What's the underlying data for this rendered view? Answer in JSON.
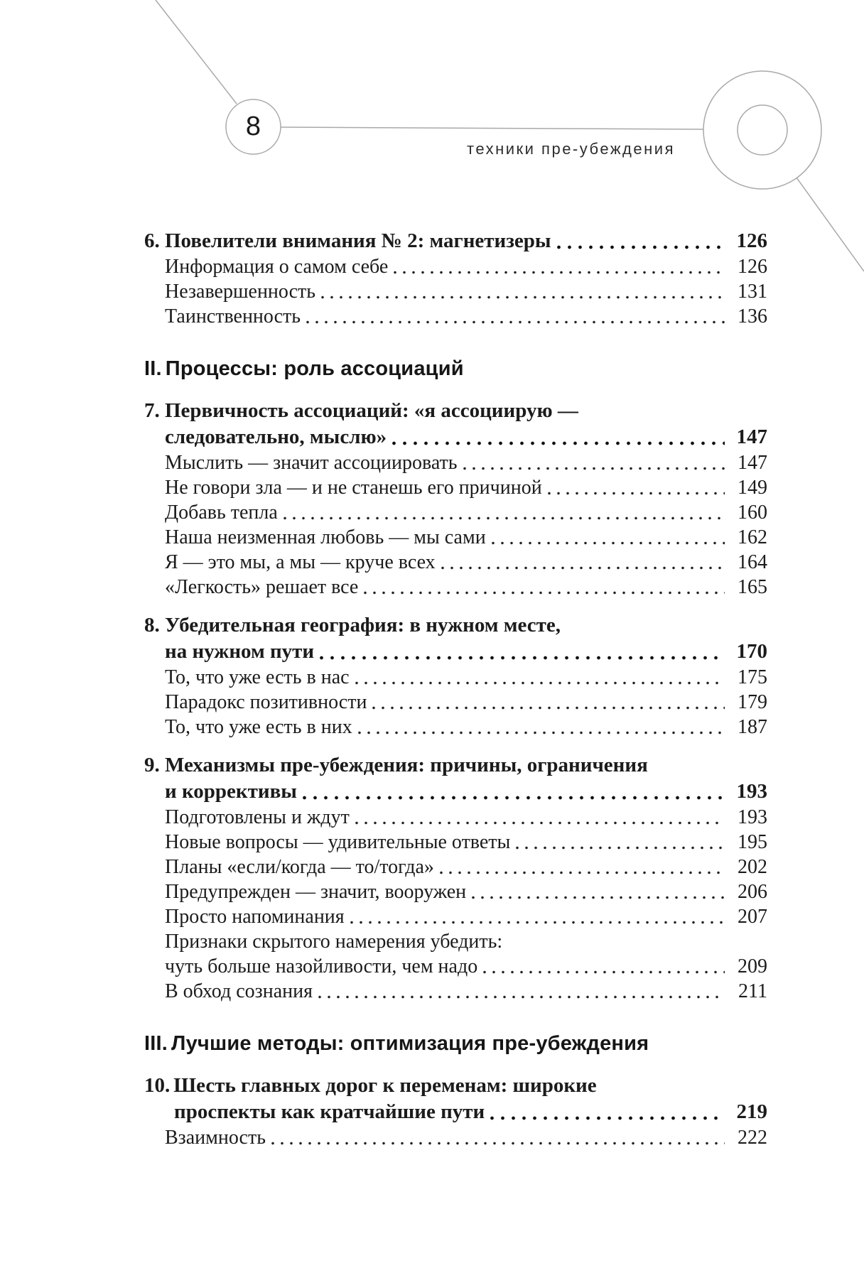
{
  "page": {
    "number": "8",
    "running_title": "техники пре-убеждения"
  },
  "decor": {
    "line_color": "#a9a9a9"
  },
  "toc": {
    "rows": [
      {
        "style": "chapter",
        "num": "6.",
        "text": "Повелители внимания № 2: магнетизеры",
        "page": "126"
      },
      {
        "style": "sub",
        "text": "Информация о самом себе",
        "page": "126"
      },
      {
        "style": "sub",
        "text": "Незавершенность",
        "page": "131"
      },
      {
        "style": "sub",
        "text": "Таинственность",
        "page": "136"
      },
      {
        "style": "section",
        "num": "II.",
        "text": "Процессы: роль ассоциаций"
      },
      {
        "style": "chapter",
        "num": "7.",
        "text": "Первичность ассоциаций: «я ассоциирую —"
      },
      {
        "style": "chapter",
        "cont": 1,
        "text": "следовательно, мыслю»",
        "page": "147"
      },
      {
        "style": "sub",
        "text": "Мыслить — значит ассоциировать",
        "page": "147"
      },
      {
        "style": "sub",
        "text": "Не говори зла — и не станешь его причиной",
        "page": "149"
      },
      {
        "style": "sub",
        "text": "Добавь тепла",
        "page": "160"
      },
      {
        "style": "sub",
        "text": "Наша неизменная любовь — мы сами",
        "page": "162"
      },
      {
        "style": "sub",
        "text": "Я — это мы, а мы — круче всех",
        "page": "164"
      },
      {
        "style": "sub",
        "text": "«Легкость» решает все",
        "page": "165"
      },
      {
        "style": "chapter",
        "num": "8.",
        "text": "Убедительная география: в нужном месте,"
      },
      {
        "style": "chapter",
        "cont": 1,
        "text": "на нужном пути",
        "page": "170"
      },
      {
        "style": "sub",
        "text": "То, что уже есть в нас",
        "page": "175"
      },
      {
        "style": "sub",
        "text": "Парадокс позитивности",
        "page": "179"
      },
      {
        "style": "sub",
        "text": "То, что уже есть в них",
        "page": "187"
      },
      {
        "style": "chapter",
        "num": "9.",
        "text": "Механизмы пре-убеждения: причины, ограничения"
      },
      {
        "style": "chapter",
        "cont": 1,
        "text": "и коррективы",
        "page": "193"
      },
      {
        "style": "sub",
        "text": "Подготовлены и ждут",
        "page": "193"
      },
      {
        "style": "sub",
        "text": "Новые вопросы — удивительные ответы",
        "page": "195"
      },
      {
        "style": "sub",
        "text": "Планы «если/когда — то/тогда»",
        "page": "202"
      },
      {
        "style": "sub",
        "text": "Предупрежден — значит, вооружен",
        "page": "206"
      },
      {
        "style": "sub",
        "text": "Просто напоминания",
        "page": "207"
      },
      {
        "style": "sub",
        "text": "Признаки скрытого намерения убедить:"
      },
      {
        "style": "sub",
        "cont": 1,
        "text": "чуть больше назойливости, чем надо",
        "page": "209"
      },
      {
        "style": "sub",
        "text": "В обход сознания",
        "page": "211"
      },
      {
        "style": "section",
        "num": "III.",
        "text": "Лучшие методы: оптимизация пре-убеждения"
      },
      {
        "style": "chapter",
        "num": "10.",
        "text": "Шесть главных дорог к переменам: широкие"
      },
      {
        "style": "chapter",
        "cont": 2,
        "text": "проспекты как кратчайшие пути",
        "page": "219"
      },
      {
        "style": "sub",
        "text": "Взаимность",
        "page": "222"
      }
    ]
  }
}
